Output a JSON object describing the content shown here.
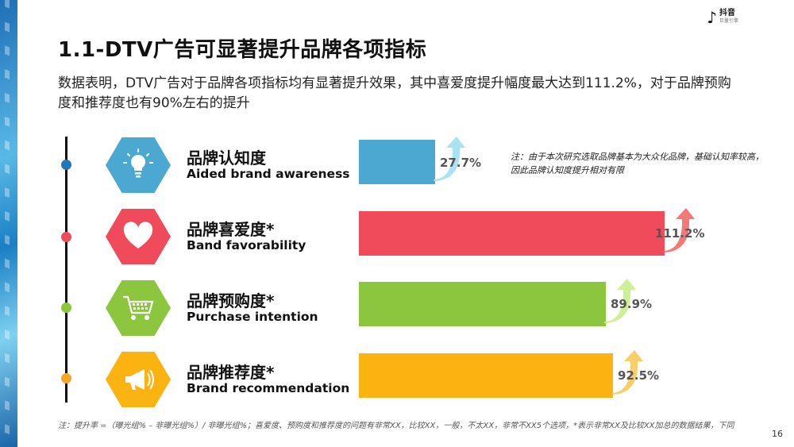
{
  "header": {
    "title": "1.1-DTV广告可显著提升品牌各项指标",
    "subtitle": "数据表明，DTV广告对于品牌各项指标均有显著提升效果，其中喜爱度提升幅度最大达到111.2%，对于品牌预购度和推荐度也有90%左右的提升",
    "logo_main": "抖音",
    "logo_sub": "巨量引擎",
    "logo_icon": "music-note-icon"
  },
  "metrics": [
    {
      "cn": "品牌认知度",
      "en": "Aided brand awareness",
      "color": "#4aa8d1",
      "dot_color": "#1f78b4",
      "icon": "lightbulb-icon",
      "value_label": "27.7%"
    },
    {
      "cn": "品牌喜爱度*",
      "en": "Band favorability",
      "color": "#f04b5b",
      "dot_color": "#f04b5b",
      "icon": "heart-icon",
      "value_label": "111.2%"
    },
    {
      "cn": "品牌预购度*",
      "en": "Purchase intention",
      "color": "#8cc63f",
      "dot_color": "#8cc63f",
      "icon": "shopping-cart-icon",
      "value_label": "89.9%"
    },
    {
      "cn": "品牌推荐度*",
      "en": "Brand recommendation",
      "color": "#fbb312",
      "dot_color": "#f5a623",
      "icon": "megaphone-icon",
      "value_label": "92.5%"
    }
  ],
  "chart_data": {
    "type": "bar",
    "orientation": "horizontal",
    "categories": [
      "品牌认知度",
      "品牌喜爱度*",
      "品牌预购度*",
      "品牌推荐度*"
    ],
    "values": [
      27.7,
      111.2,
      89.9,
      92.5
    ],
    "unit": "%",
    "title": "",
    "xlabel": "",
    "ylabel": "",
    "xlim": [
      0,
      111.2
    ],
    "grid": false,
    "legend": false
  },
  "note_top": "注：由于本次研究选取品牌基本为大众化品牌，基础认知率较高，因此品牌认知度提升相对有限",
  "footnote": "注：提升率 =（曝光组% – 非曝光组%）/ 非曝光组%；喜爱度、预购度和推荐度的问题有非常XX，比较XX，一般，不太XX，非常不XX5个选项，*表示非常XX及比较XX加总的数据结果，下同",
  "page_number": "16"
}
